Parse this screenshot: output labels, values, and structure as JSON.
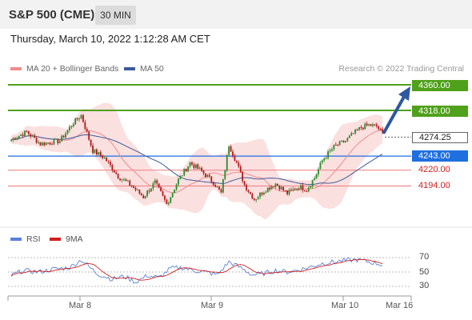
{
  "header": {
    "title": "S&P 500 (CME)",
    "timeframe": "30 MIN"
  },
  "datetime": "Thursday, March 10, 2022 1:12:28 AM CET",
  "legend": {
    "ma20_label": "MA 20 + Bollinger Bands",
    "ma50_label": "MA 50",
    "credit": "Research © 2022 Trading Central"
  },
  "rsi_legend": {
    "rsi_label": "RSI",
    "ma_label": "9MA"
  },
  "colors": {
    "up": "#2a8a2a",
    "down": "#b01818",
    "bb_fill": "#fbe0e0",
    "ma20": "#f08a8a",
    "ma50": "#3c5a9a",
    "resistance": "#4fa01a",
    "pivot": "#1e6fe0",
    "support": "#f08a8a",
    "support_text": "#d02020",
    "arrow": "#2d58a0",
    "rsi": "#5a80d8",
    "rsi_ma": "#d02020"
  },
  "chart_data": {
    "type": "candlestick",
    "instrument": "S&P 500 (CME)",
    "timeframe": "30 MIN",
    "x_tick_labels": [
      "Mar 8",
      "Mar 9",
      "Mar 10",
      "Mar 16"
    ],
    "ylim": [
      4145,
      4375
    ],
    "price_levels": [
      {
        "value": 4360.0,
        "label": "4360.00",
        "kind": "resistance"
      },
      {
        "value": 4318.0,
        "label": "4318.00",
        "kind": "resistance"
      },
      {
        "value": 4274.25,
        "label": "4274.25",
        "kind": "current"
      },
      {
        "value": 4243.0,
        "label": "4243.00",
        "kind": "pivot"
      },
      {
        "value": 4220.0,
        "label": "4220.00",
        "kind": "support"
      },
      {
        "value": 4194.0,
        "label": "4194.00",
        "kind": "support"
      }
    ],
    "price_anchors": [
      [
        0,
        4270
      ],
      [
        8,
        4283
      ],
      [
        15,
        4263
      ],
      [
        25,
        4268
      ],
      [
        32,
        4298
      ],
      [
        36,
        4310
      ],
      [
        42,
        4252
      ],
      [
        48,
        4240
      ],
      [
        55,
        4210
      ],
      [
        62,
        4194
      ],
      [
        68,
        4176
      ],
      [
        74,
        4200
      ],
      [
        80,
        4164
      ],
      [
        86,
        4204
      ],
      [
        92,
        4232
      ],
      [
        98,
        4218
      ],
      [
        104,
        4200
      ],
      [
        108,
        4182
      ],
      [
        112,
        4262
      ],
      [
        116,
        4232
      ],
      [
        120,
        4196
      ],
      [
        125,
        4172
      ],
      [
        130,
        4186
      ],
      [
        136,
        4198
      ],
      [
        142,
        4182
      ],
      [
        148,
        4193
      ],
      [
        152,
        4188
      ],
      [
        156,
        4207
      ],
      [
        160,
        4236
      ],
      [
        166,
        4258
      ],
      [
        172,
        4268
      ],
      [
        176,
        4280
      ],
      [
        180,
        4290
      ],
      [
        184,
        4294
      ],
      [
        188,
        4292
      ],
      [
        191,
        4280
      ]
    ],
    "forecast_target": 4360,
    "rsi": {
      "levels": [
        70,
        50,
        30
      ],
      "ylim": [
        20,
        80
      ],
      "anchors": [
        [
          0,
          45
        ],
        [
          6,
          52
        ],
        [
          14,
          50
        ],
        [
          22,
          54
        ],
        [
          30,
          56
        ],
        [
          36,
          67
        ],
        [
          44,
          48
        ],
        [
          52,
          40
        ],
        [
          58,
          44
        ],
        [
          64,
          36
        ],
        [
          70,
          45
        ],
        [
          76,
          42
        ],
        [
          82,
          55
        ],
        [
          88,
          56
        ],
        [
          94,
          52
        ],
        [
          100,
          50
        ],
        [
          106,
          46
        ],
        [
          112,
          64
        ],
        [
          118,
          56
        ],
        [
          124,
          46
        ],
        [
          130,
          48
        ],
        [
          136,
          52
        ],
        [
          142,
          50
        ],
        [
          148,
          53
        ],
        [
          154,
          57
        ],
        [
          160,
          62
        ],
        [
          166,
          64
        ],
        [
          172,
          66
        ],
        [
          178,
          67
        ],
        [
          184,
          64
        ],
        [
          188,
          62
        ],
        [
          191,
          60
        ]
      ]
    }
  },
  "axis": {
    "rsi_ticks": [
      "70",
      "50",
      "30"
    ]
  }
}
